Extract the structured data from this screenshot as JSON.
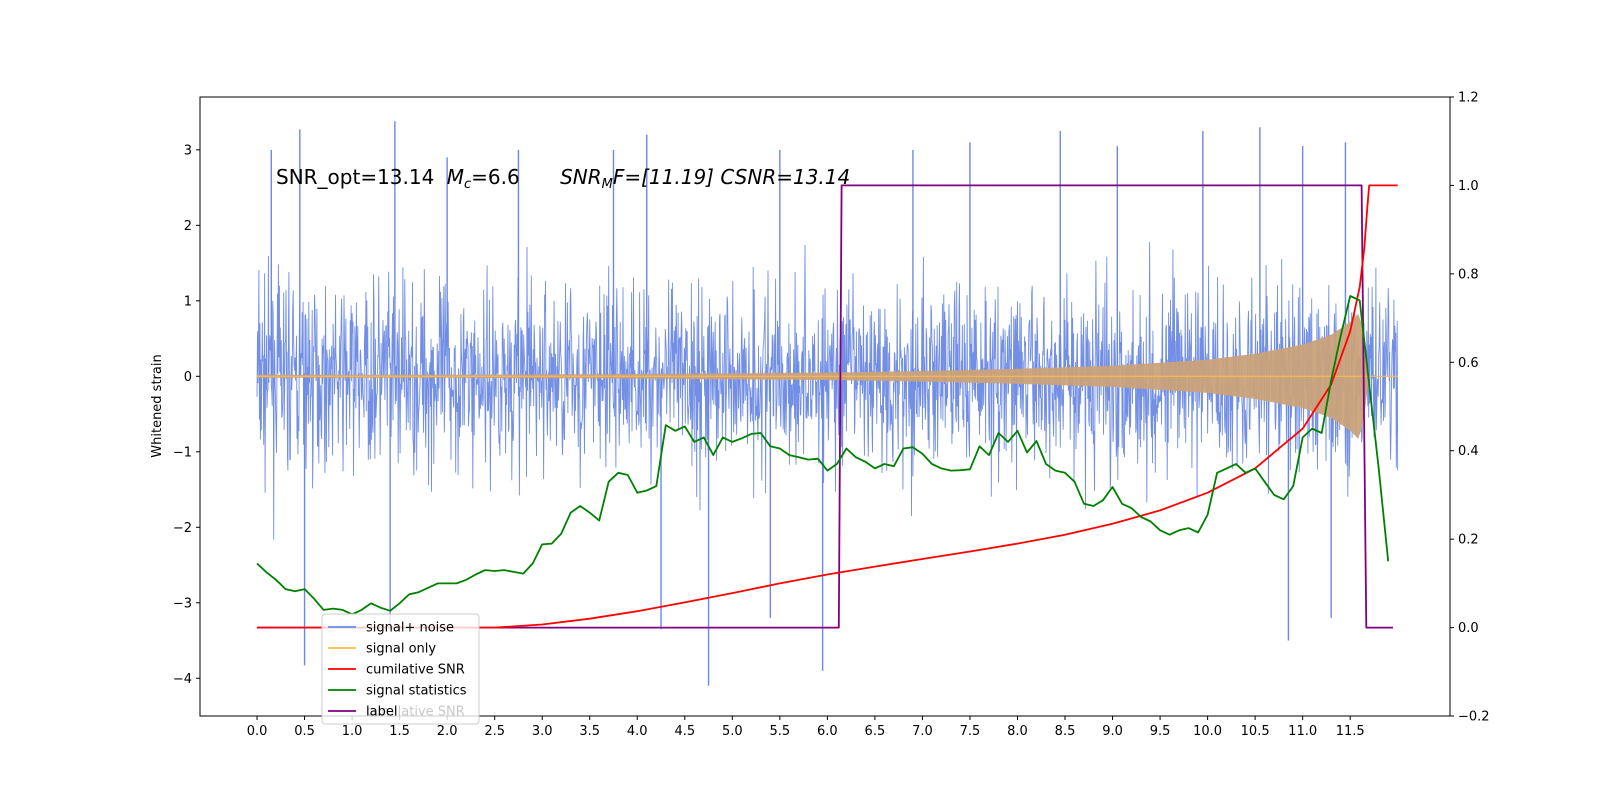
{
  "chart_data": {
    "type": "line",
    "title_parts": {
      "snr_opt": "SNR_opt=13.14",
      "mc_symbol": "M",
      "mc_sub": "c",
      "mc_value": "=6.6",
      "snr_symbol": "SNR",
      "snr_sub": "M",
      "snr_tail": "F=[11.19] CSNR=13.14"
    },
    "ylabel": "Whitened strain",
    "xlim": [
      -0.6,
      12.55
    ],
    "ylim_left": [
      -4.5,
      3.7
    ],
    "ylim_right": [
      -0.2,
      1.2
    ],
    "x_ticks": [
      0.0,
      0.5,
      1.0,
      1.5,
      2.0,
      2.5,
      3.0,
      3.5,
      4.0,
      4.5,
      5.0,
      5.5,
      6.0,
      6.5,
      7.0,
      7.5,
      8.0,
      8.5,
      9.0,
      9.5,
      10.0,
      10.5,
      11.0,
      11.5
    ],
    "x_tick_labels": [
      "0.0",
      "0.5",
      "1.0",
      "1.5",
      "2.0",
      "2.5",
      "3.0",
      "3.5",
      "4.0",
      "4.5",
      "5.0",
      "5.5",
      "6.0",
      "6.5",
      "7.0",
      "7.5",
      "8.0",
      "8.5",
      "9.0",
      "9.5",
      "10.0",
      "10.5",
      "11.0",
      "11.5"
    ],
    "y_left_ticks": [
      3,
      2,
      1,
      0,
      -1,
      -2,
      -3,
      -4
    ],
    "y_left_tick_labels": [
      "3",
      "2",
      "1",
      "0",
      "−1",
      "−2",
      "−3",
      "−4"
    ],
    "y_right_ticks": [
      1.2,
      1.0,
      0.8,
      0.6,
      0.4,
      0.2,
      0.0,
      -0.2
    ],
    "y_right_tick_labels": [
      "1.2",
      "1.0",
      "0.8",
      "0.6",
      "0.4",
      "0.2",
      "0.0",
      "−0.2"
    ],
    "colors": {
      "noise": "#6a89e4",
      "signal": "#ffb84d",
      "cum_snr": "#ff0000",
      "stats": "#008000",
      "label": "#800080"
    },
    "series": [
      {
        "name": "signal+ noise",
        "axis": "left",
        "kind": "noise_band",
        "x_range": [
          0.0,
          12.0
        ],
        "approx_range": [
          -4.1,
          3.4
        ],
        "spikes": [
          {
            "x": 0.15,
            "y": 3.0
          },
          {
            "x": 0.45,
            "y": 3.27
          },
          {
            "x": 0.5,
            "y": -3.83
          },
          {
            "x": 1.45,
            "y": 3.38
          },
          {
            "x": 1.4,
            "y": -3.3
          },
          {
            "x": 2.0,
            "y": 2.9
          },
          {
            "x": 2.75,
            "y": 3.0
          },
          {
            "x": 3.75,
            "y": 3.0
          },
          {
            "x": 4.1,
            "y": 3.2
          },
          {
            "x": 4.25,
            "y": -3.35
          },
          {
            "x": 4.75,
            "y": -4.1
          },
          {
            "x": 5.5,
            "y": 3.0
          },
          {
            "x": 5.95,
            "y": -3.9
          },
          {
            "x": 8.45,
            "y": 3.25
          },
          {
            "x": 9.05,
            "y": 3.05
          },
          {
            "x": 9.95,
            "y": 3.25
          },
          {
            "x": 10.85,
            "y": -3.5
          },
          {
            "x": 11.0,
            "y": 3.05
          },
          {
            "x": 11.3,
            "y": -3.2
          },
          {
            "x": 11.45,
            "y": 3.1
          },
          {
            "x": 10.55,
            "y": 3.3
          },
          {
            "x": 7.5,
            "y": 3.1
          },
          {
            "x": 6.9,
            "y": 3.0
          },
          {
            "x": 5.4,
            "y": -3.2
          }
        ]
      },
      {
        "name": "signal only",
        "axis": "left",
        "kind": "chirp_envelope",
        "x": [
          0.0,
          2.0,
          4.0,
          6.0,
          7.0,
          8.0,
          9.0,
          10.0,
          10.5,
          11.0,
          11.3,
          11.5,
          11.6,
          11.65,
          11.7
        ],
        "envelope": [
          0.02,
          0.02,
          0.03,
          0.05,
          0.07,
          0.1,
          0.14,
          0.22,
          0.3,
          0.42,
          0.55,
          0.72,
          0.85,
          0.5,
          0.0
        ]
      },
      {
        "name": "cumilative SNR",
        "axis": "right",
        "kind": "line",
        "x": [
          0.0,
          2.0,
          2.5,
          3.0,
          3.5,
          4.0,
          4.5,
          5.0,
          5.5,
          6.0,
          6.5,
          7.0,
          7.5,
          8.0,
          8.5,
          9.0,
          9.5,
          10.0,
          10.5,
          11.0,
          11.3,
          11.5,
          11.6,
          11.65,
          11.68,
          11.7,
          12.0
        ],
        "y": [
          0.0,
          0.0,
          0.0,
          0.007,
          0.02,
          0.037,
          0.057,
          0.078,
          0.1,
          0.12,
          0.138,
          0.155,
          0.172,
          0.19,
          0.21,
          0.235,
          0.265,
          0.305,
          0.36,
          0.45,
          0.55,
          0.67,
          0.77,
          0.86,
          0.95,
          1.0,
          1.0
        ]
      },
      {
        "name": "signal statistics",
        "axis": "right",
        "kind": "line",
        "x": [
          0.0,
          0.1,
          0.2,
          0.3,
          0.4,
          0.5,
          0.6,
          0.7,
          0.8,
          0.9,
          1.0,
          1.1,
          1.2,
          1.3,
          1.4,
          1.5,
          1.6,
          1.7,
          1.8,
          1.9,
          2.0,
          2.1,
          2.2,
          2.3,
          2.4,
          2.5,
          2.6,
          2.7,
          2.8,
          2.9,
          3.0,
          3.1,
          3.2,
          3.3,
          3.4,
          3.5,
          3.6,
          3.7,
          3.8,
          3.9,
          4.0,
          4.1,
          4.2,
          4.3,
          4.4,
          4.5,
          4.6,
          4.7,
          4.8,
          4.9,
          5.0,
          5.1,
          5.2,
          5.3,
          5.4,
          5.5,
          5.6,
          5.7,
          5.8,
          5.9,
          6.0,
          6.1,
          6.2,
          6.3,
          6.4,
          6.5,
          6.6,
          6.7,
          6.8,
          6.9,
          7.0,
          7.1,
          7.2,
          7.3,
          7.4,
          7.5,
          7.6,
          7.7,
          7.8,
          7.9,
          8.0,
          8.1,
          8.2,
          8.3,
          8.4,
          8.5,
          8.6,
          8.7,
          8.8,
          8.9,
          9.0,
          9.1,
          9.2,
          9.3,
          9.4,
          9.5,
          9.6,
          9.7,
          9.8,
          9.9,
          10.0,
          10.1,
          10.2,
          10.3,
          10.4,
          10.5,
          10.6,
          10.7,
          10.8,
          10.9,
          11.0,
          11.1,
          11.2,
          11.3,
          11.4,
          11.5,
          11.6,
          11.7,
          11.8,
          11.9
        ],
        "y": [
          0.145,
          0.125,
          0.108,
          0.087,
          0.082,
          0.087,
          0.065,
          0.04,
          0.043,
          0.04,
          0.03,
          0.04,
          0.055,
          0.045,
          0.038,
          0.055,
          0.075,
          0.08,
          0.09,
          0.1,
          0.1,
          0.1,
          0.108,
          0.12,
          0.13,
          0.128,
          0.13,
          0.126,
          0.122,
          0.145,
          0.188,
          0.19,
          0.212,
          0.26,
          0.275,
          0.26,
          0.242,
          0.33,
          0.35,
          0.345,
          0.305,
          0.31,
          0.32,
          0.458,
          0.445,
          0.455,
          0.42,
          0.43,
          0.39,
          0.43,
          0.42,
          0.428,
          0.438,
          0.44,
          0.41,
          0.405,
          0.39,
          0.385,
          0.38,
          0.382,
          0.355,
          0.37,
          0.405,
          0.385,
          0.375,
          0.36,
          0.37,
          0.365,
          0.405,
          0.408,
          0.393,
          0.37,
          0.36,
          0.355,
          0.356,
          0.358,
          0.41,
          0.39,
          0.44,
          0.42,
          0.445,
          0.396,
          0.422,
          0.37,
          0.355,
          0.35,
          0.33,
          0.28,
          0.275,
          0.288,
          0.318,
          0.28,
          0.27,
          0.25,
          0.24,
          0.22,
          0.21,
          0.22,
          0.225,
          0.215,
          0.255,
          0.35,
          0.36,
          0.37,
          0.35,
          0.36,
          0.33,
          0.3,
          0.29,
          0.32,
          0.43,
          0.45,
          0.44,
          0.56,
          0.66,
          0.75,
          0.74,
          0.55,
          0.36,
          0.15
        ]
      },
      {
        "name": "label",
        "axis": "right",
        "kind": "step",
        "x": [
          0.0,
          6.12,
          6.15,
          11.62,
          11.67,
          11.95
        ],
        "y": [
          0.0,
          0.0,
          1.0,
          1.0,
          0.0,
          0.0
        ]
      }
    ],
    "legend": {
      "placement": "lower-left",
      "entries": [
        "signal+ noise",
        "signal only",
        "cumilative SNR",
        "signal statistics",
        "label"
      ],
      "ghost_text": "cumilative SNR"
    }
  }
}
